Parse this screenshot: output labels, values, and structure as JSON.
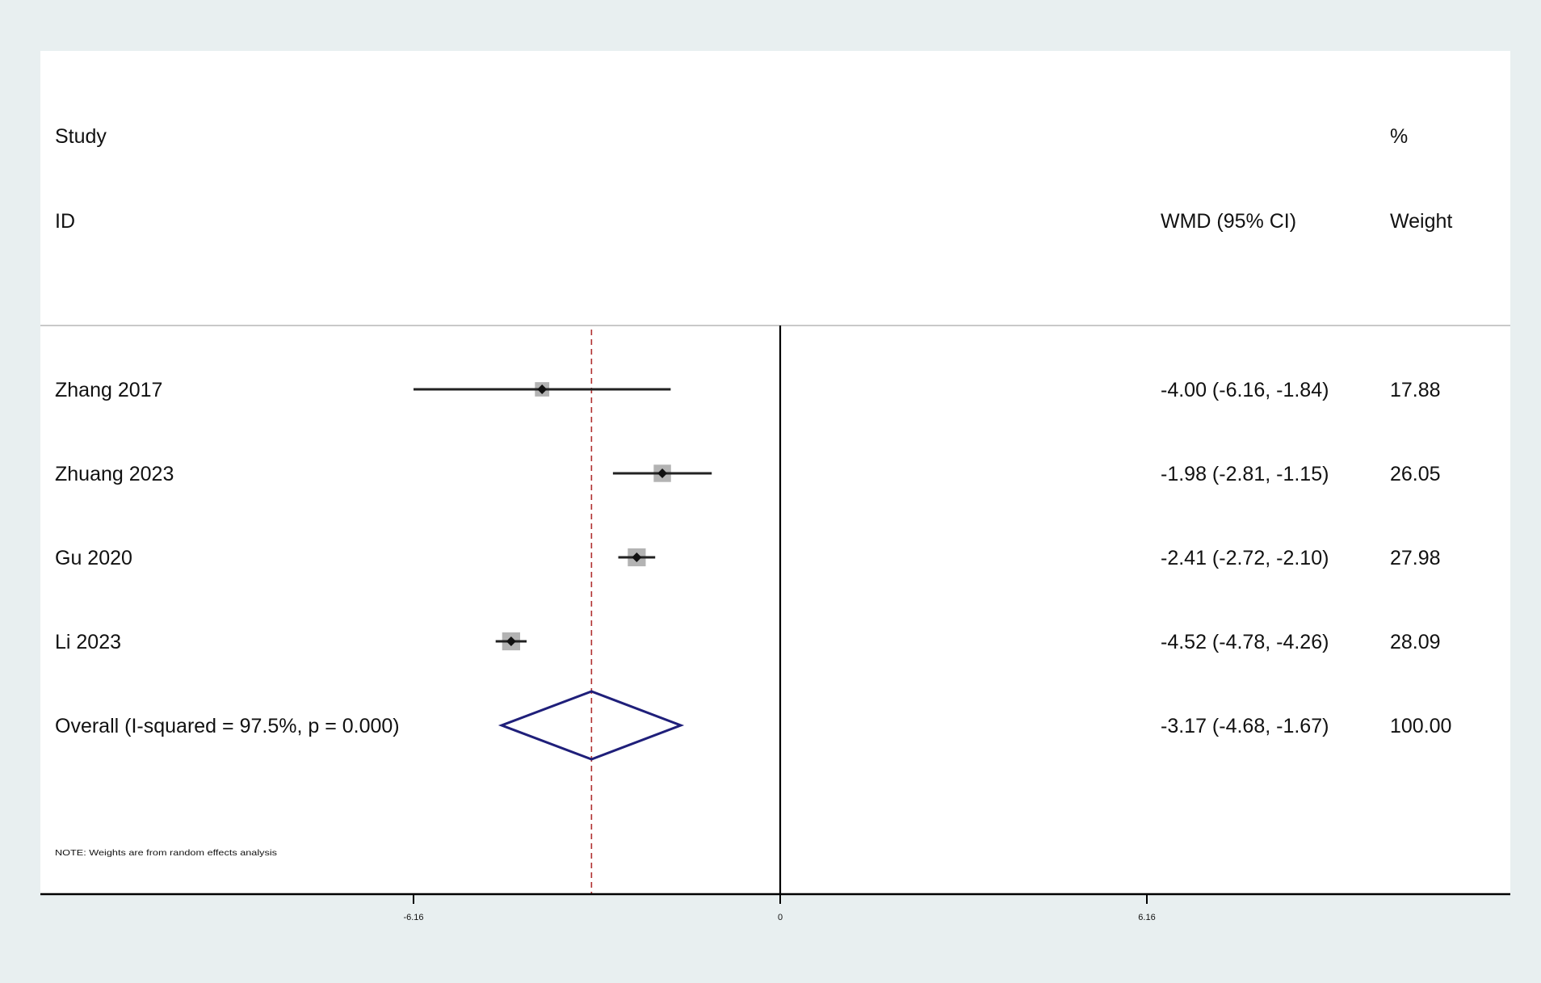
{
  "header": {
    "study_line1": "Study",
    "study_line2": "ID",
    "effect_label": "WMD (95% CI)",
    "weight_line1": "%",
    "weight_line2": "Weight"
  },
  "note": "NOTE: Weights are from random effects analysis",
  "colors": {
    "outer_background": "#e8eff0",
    "plot_background": "#ffffff",
    "ci_line": "#222222",
    "point": "#111111",
    "weight_box": "#b3b3b3",
    "overall_diamond": "#1f1f7a",
    "overall_reference_line": "#b03030",
    "null_line": "#000000"
  },
  "chart_data": {
    "type": "forest",
    "effect_measure": "WMD",
    "xlim": [
      -9.24,
      9.24
    ],
    "xticks": [
      -6.16,
      0,
      6.16
    ],
    "xtick_labels": [
      "-6.16",
      "0",
      "6.16"
    ],
    "null_value": 0,
    "studies": [
      {
        "id": "Zhang 2017",
        "estimate": -4.0,
        "ci_low": -6.16,
        "ci_high": -1.84,
        "weight": 17.88,
        "ci_text": "-4.00 (-6.16, -1.84)",
        "weight_text": "17.88"
      },
      {
        "id": "Zhuang 2023",
        "estimate": -1.98,
        "ci_low": -2.81,
        "ci_high": -1.15,
        "weight": 26.05,
        "ci_text": "-1.98 (-2.81, -1.15)",
        "weight_text": "26.05"
      },
      {
        "id": "Gu 2020",
        "estimate": -2.41,
        "ci_low": -2.72,
        "ci_high": -2.1,
        "weight": 27.98,
        "ci_text": "-2.41 (-2.72, -2.10)",
        "weight_text": "27.98"
      },
      {
        "id": "Li 2023",
        "estimate": -4.52,
        "ci_low": -4.78,
        "ci_high": -4.26,
        "weight": 28.09,
        "ci_text": "-4.52 (-4.78, -4.26)",
        "weight_text": "28.09"
      }
    ],
    "overall": {
      "label": "Overall  (I-squared = 97.5%, p = 0.000)",
      "estimate": -3.17,
      "ci_low": -4.68,
      "ci_high": -1.67,
      "weight": 100.0,
      "ci_text": "-3.17 (-4.68, -1.67)",
      "weight_text": "100.00"
    }
  }
}
